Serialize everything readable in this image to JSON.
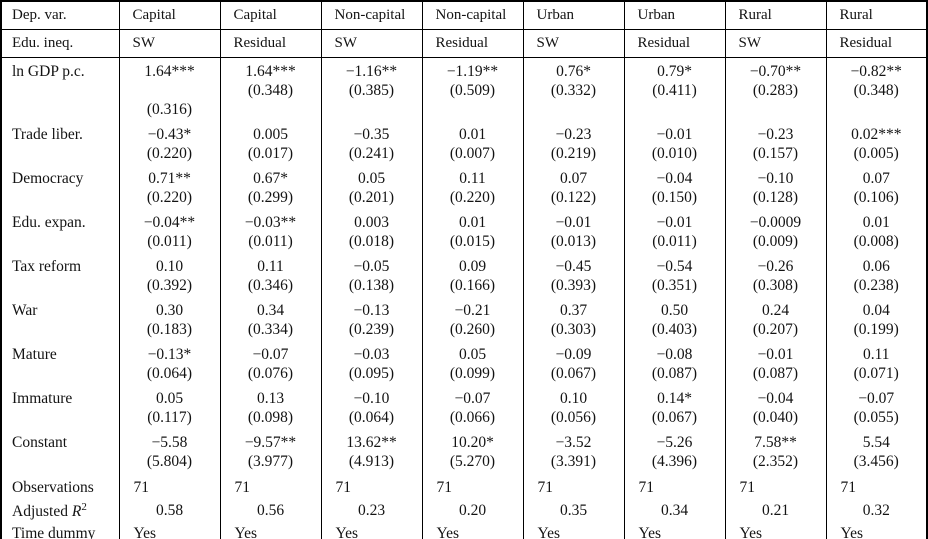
{
  "page": {
    "background_color": "#ffffff",
    "text_color": "#131313",
    "border_color": "#000000"
  },
  "table": {
    "name": "regression-results-table",
    "label_col_width": 118,
    "header_rows": [
      {
        "label": "Dep. var.",
        "cells": [
          "Capital",
          "Capital",
          "Non-capital",
          "Non-capital",
          "Urban",
          "Urban",
          "Rural",
          "Rural"
        ]
      },
      {
        "label": "Edu. ineq.",
        "cells": [
          "SW",
          "Residual",
          "SW",
          "Residual",
          "SW",
          "Residual",
          "SW",
          "Residual"
        ]
      }
    ],
    "rows": [
      {
        "type": "coef3",
        "label": "ln GDP p.c.",
        "cells": [
          [
            "1.64***",
            "",
            "(0.316)"
          ],
          [
            "1.64***",
            "(0.348)",
            ""
          ],
          [
            "−1.16**",
            "(0.385)",
            ""
          ],
          [
            "−1.19**",
            "(0.509)",
            ""
          ],
          [
            "0.76*",
            "(0.332)",
            ""
          ],
          [
            "0.79*",
            "(0.411)",
            ""
          ],
          [
            "−0.70**",
            "(0.283)",
            ""
          ],
          [
            "−0.82**",
            "(0.348)",
            ""
          ]
        ]
      },
      {
        "type": "coef",
        "label": "Trade liber.",
        "cells": [
          [
            "−0.43*",
            "(0.220)"
          ],
          [
            "0.005",
            "(0.017)"
          ],
          [
            "−0.35",
            "(0.241)"
          ],
          [
            "0.01",
            "(0.007)"
          ],
          [
            "−0.23",
            "(0.219)"
          ],
          [
            "−0.01",
            "(0.010)"
          ],
          [
            "−0.23",
            "(0.157)"
          ],
          [
            "0.02***",
            "(0.005)"
          ]
        ]
      },
      {
        "type": "coef",
        "label": "Democracy",
        "cells": [
          [
            "0.71**",
            "(0.220)"
          ],
          [
            "0.67*",
            "(0.299)"
          ],
          [
            "0.05",
            "(0.201)"
          ],
          [
            "0.11",
            "(0.220)"
          ],
          [
            "0.07",
            "(0.122)"
          ],
          [
            "−0.04",
            "(0.150)"
          ],
          [
            "−0.10",
            "(0.128)"
          ],
          [
            "0.07",
            "(0.106)"
          ]
        ]
      },
      {
        "type": "coef",
        "label": "Edu. expan.",
        "cells": [
          [
            "−0.04**",
            "(0.011)"
          ],
          [
            "−0.03**",
            "(0.011)"
          ],
          [
            "0.003",
            "(0.018)"
          ],
          [
            "0.01",
            "(0.015)"
          ],
          [
            "−0.01",
            "(0.013)"
          ],
          [
            "−0.01",
            "(0.011)"
          ],
          [
            "−0.0009",
            "(0.009)"
          ],
          [
            "0.01",
            "(0.008)"
          ]
        ]
      },
      {
        "type": "coef",
        "label": "Tax reform",
        "cells": [
          [
            "0.10",
            "(0.392)"
          ],
          [
            "0.11",
            "(0.346)"
          ],
          [
            "−0.05",
            "(0.138)"
          ],
          [
            "0.09",
            "(0.166)"
          ],
          [
            "−0.45",
            "(0.393)"
          ],
          [
            "−0.54",
            "(0.351)"
          ],
          [
            "−0.26",
            "(0.308)"
          ],
          [
            "0.06",
            "(0.238)"
          ]
        ]
      },
      {
        "type": "coef",
        "label": "War",
        "cells": [
          [
            "0.30",
            "(0.183)"
          ],
          [
            "0.34",
            "(0.334)"
          ],
          [
            "−0.13",
            "(0.239)"
          ],
          [
            "−0.21",
            "(0.260)"
          ],
          [
            "0.37",
            "(0.303)"
          ],
          [
            "0.50",
            "(0.403)"
          ],
          [
            "0.24",
            "(0.207)"
          ],
          [
            "0.04",
            "(0.199)"
          ]
        ]
      },
      {
        "type": "coef",
        "label": "Mature",
        "cells": [
          [
            "−0.13*",
            "(0.064)"
          ],
          [
            "−0.07",
            "(0.076)"
          ],
          [
            "−0.03",
            "(0.095)"
          ],
          [
            "0.05",
            "(0.099)"
          ],
          [
            "−0.09",
            "(0.067)"
          ],
          [
            "−0.08",
            "(0.087)"
          ],
          [
            "−0.01",
            "(0.087)"
          ],
          [
            "0.11",
            "(0.071)"
          ]
        ]
      },
      {
        "type": "coef",
        "label": "Immature",
        "cells": [
          [
            "0.05",
            "(0.117)"
          ],
          [
            "0.13",
            "(0.098)"
          ],
          [
            "−0.10",
            "(0.064)"
          ],
          [
            "−0.07",
            "(0.066)"
          ],
          [
            "0.10",
            "(0.056)"
          ],
          [
            "0.14*",
            "(0.067)"
          ],
          [
            "−0.04",
            "(0.040)"
          ],
          [
            "−0.07",
            "(0.055)"
          ]
        ]
      },
      {
        "type": "coef",
        "label": "Constant",
        "cells": [
          [
            "−5.58",
            "(5.804)"
          ],
          [
            "−9.57**",
            "(3.977)"
          ],
          [
            "13.62**",
            "(4.913)"
          ],
          [
            "10.20*",
            "(5.270)"
          ],
          [
            "−3.52",
            "(3.391)"
          ],
          [
            "−5.26",
            "(4.396)"
          ],
          [
            "7.58**",
            "(2.352)"
          ],
          [
            "5.54",
            "(3.456)"
          ]
        ]
      },
      {
        "type": "stat",
        "label": "Observations",
        "cells": [
          "71",
          "71",
          "71",
          "71",
          "71",
          "71",
          "71",
          "71"
        ]
      },
      {
        "type": "stat-center",
        "label_parts": [
          {
            "t": "Adjusted "
          },
          {
            "t": "R",
            "style": "italic"
          },
          {
            "t": "2",
            "style": "sup"
          }
        ],
        "cells": [
          "0.58",
          "0.56",
          "0.23",
          "0.20",
          "0.35",
          "0.34",
          "0.21",
          "0.32"
        ]
      },
      {
        "type": "stat",
        "label": "Time dummy",
        "cells": [
          "Yes",
          "Yes",
          "Yes",
          "Yes",
          "Yes",
          "Yes",
          "Yes",
          "Yes"
        ]
      }
    ]
  }
}
